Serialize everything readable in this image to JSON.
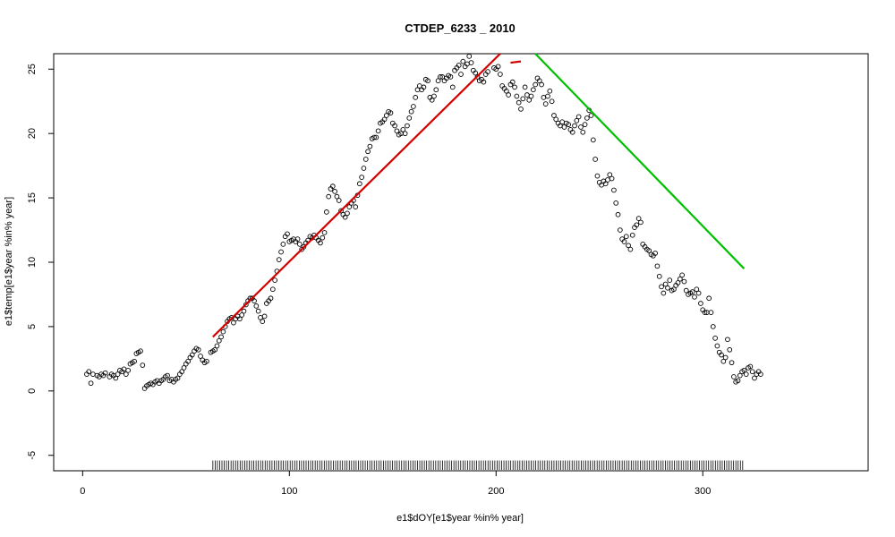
{
  "chart_data": {
    "type": "scatter",
    "title": "CTDEP_6233 _ 2010",
    "xlabel": "e1$dOY[e1$year %in% year]",
    "ylabel": "e1$temp[e1$year %in% year]",
    "xlim": [
      -14,
      380
    ],
    "ylim": [
      -6.2,
      26.2
    ],
    "x_ticks": [
      0,
      100,
      200,
      300
    ],
    "y_ticks": [
      -5,
      0,
      5,
      10,
      15,
      20,
      25
    ],
    "grid": false,
    "legend": "none",
    "points": [
      [
        2,
        1.3
      ],
      [
        3,
        1.5
      ],
      [
        4,
        0.6
      ],
      [
        5,
        1.3
      ],
      [
        7,
        1.2
      ],
      [
        8,
        1.1
      ],
      [
        9,
        1.3
      ],
      [
        10,
        1.2
      ],
      [
        11,
        1.4
      ],
      [
        13,
        1.1
      ],
      [
        14,
        1.3
      ],
      [
        15,
        1.2
      ],
      [
        16,
        1.0
      ],
      [
        17,
        1.3
      ],
      [
        18,
        1.6
      ],
      [
        19,
        1.5
      ],
      [
        20,
        1.7
      ],
      [
        21,
        1.3
      ],
      [
        22,
        1.6
      ],
      [
        23,
        2.1
      ],
      [
        24,
        2.2
      ],
      [
        25,
        2.3
      ],
      [
        26,
        2.9
      ],
      [
        27,
        3.0
      ],
      [
        28,
        3.1
      ],
      [
        29,
        2.0
      ],
      [
        30,
        0.2
      ],
      [
        31,
        0.4
      ],
      [
        32,
        0.5
      ],
      [
        33,
        0.6
      ],
      [
        34,
        0.5
      ],
      [
        35,
        0.7
      ],
      [
        36,
        0.8
      ],
      [
        37,
        0.6
      ],
      [
        38,
        0.8
      ],
      [
        39,
        0.9
      ],
      [
        40,
        1.1
      ],
      [
        41,
        1.2
      ],
      [
        42,
        0.8
      ],
      [
        43,
        0.9
      ],
      [
        44,
        0.7
      ],
      [
        45,
        0.9
      ],
      [
        46,
        1.0
      ],
      [
        47,
        1.3
      ],
      [
        48,
        1.5
      ],
      [
        49,
        1.8
      ],
      [
        50,
        2.1
      ],
      [
        51,
        2.3
      ],
      [
        52,
        2.6
      ],
      [
        53,
        2.8
      ],
      [
        54,
        3.1
      ],
      [
        55,
        3.3
      ],
      [
        56,
        3.2
      ],
      [
        57,
        2.7
      ],
      [
        58,
        2.4
      ],
      [
        59,
        2.2
      ],
      [
        60,
        2.3
      ],
      [
        62,
        3.0
      ],
      [
        63,
        3.1
      ],
      [
        64,
        3.2
      ],
      [
        65,
        3.5
      ],
      [
        66,
        3.9
      ],
      [
        67,
        4.2
      ],
      [
        68,
        4.6
      ],
      [
        69,
        5.0
      ],
      [
        70,
        5.4
      ],
      [
        71,
        5.6
      ],
      [
        72,
        5.7
      ],
      [
        73,
        5.3
      ],
      [
        74,
        5.6
      ],
      [
        75,
        5.8
      ],
      [
        76,
        5.6
      ],
      [
        77,
        5.9
      ],
      [
        78,
        6.2
      ],
      [
        79,
        6.7
      ],
      [
        80,
        7.0
      ],
      [
        81,
        7.2
      ],
      [
        82,
        7.2
      ],
      [
        83,
        7.0
      ],
      [
        84,
        6.6
      ],
      [
        85,
        6.2
      ],
      [
        86,
        5.7
      ],
      [
        87,
        5.4
      ],
      [
        88,
        5.8
      ],
      [
        89,
        6.8
      ],
      [
        90,
        7.0
      ],
      [
        91,
        7.2
      ],
      [
        92,
        7.9
      ],
      [
        93,
        8.6
      ],
      [
        94,
        9.3
      ],
      [
        95,
        10.2
      ],
      [
        96,
        10.8
      ],
      [
        97,
        11.4
      ],
      [
        98,
        12.0
      ],
      [
        99,
        12.2
      ],
      [
        100,
        11.6
      ],
      [
        101,
        11.7
      ],
      [
        102,
        11.8
      ],
      [
        103,
        11.6
      ],
      [
        104,
        11.8
      ],
      [
        105,
        11.4
      ],
      [
        106,
        11.0
      ],
      [
        107,
        11.2
      ],
      [
        108,
        11.5
      ],
      [
        109,
        11.7
      ],
      [
        110,
        12.0
      ],
      [
        111,
        11.9
      ],
      [
        112,
        12.1
      ],
      [
        113,
        11.9
      ],
      [
        114,
        11.7
      ],
      [
        115,
        11.5
      ],
      [
        116,
        11.9
      ],
      [
        117,
        12.3
      ],
      [
        118,
        13.9
      ],
      [
        119,
        15.1
      ],
      [
        120,
        15.7
      ],
      [
        121,
        15.9
      ],
      [
        122,
        15.5
      ],
      [
        123,
        15.1
      ],
      [
        124,
        14.8
      ],
      [
        125,
        14.0
      ],
      [
        126,
        13.7
      ],
      [
        127,
        13.5
      ],
      [
        128,
        13.8
      ],
      [
        129,
        14.3
      ],
      [
        130,
        14.6
      ],
      [
        131,
        14.8
      ],
      [
        132,
        14.3
      ],
      [
        133,
        15.2
      ],
      [
        134,
        16.1
      ],
      [
        135,
        16.6
      ],
      [
        136,
        17.3
      ],
      [
        137,
        18.0
      ],
      [
        138,
        18.6
      ],
      [
        139,
        19.0
      ],
      [
        140,
        19.6
      ],
      [
        141,
        19.7
      ],
      [
        142,
        19.7
      ],
      [
        143,
        20.2
      ],
      [
        144,
        20.8
      ],
      [
        145,
        20.9
      ],
      [
        146,
        21.1
      ],
      [
        147,
        21.4
      ],
      [
        148,
        21.7
      ],
      [
        149,
        21.6
      ],
      [
        150,
        20.8
      ],
      [
        151,
        20.6
      ],
      [
        152,
        20.2
      ],
      [
        153,
        19.9
      ],
      [
        154,
        20.0
      ],
      [
        155,
        20.3
      ],
      [
        156,
        20.0
      ],
      [
        157,
        20.6
      ],
      [
        158,
        21.2
      ],
      [
        159,
        21.7
      ],
      [
        160,
        22.1
      ],
      [
        161,
        22.8
      ],
      [
        162,
        23.4
      ],
      [
        163,
        23.7
      ],
      [
        164,
        23.4
      ],
      [
        165,
        23.6
      ],
      [
        166,
        24.2
      ],
      [
        167,
        24.1
      ],
      [
        168,
        22.8
      ],
      [
        169,
        22.6
      ],
      [
        170,
        22.9
      ],
      [
        171,
        23.4
      ],
      [
        172,
        24.1
      ],
      [
        173,
        24.4
      ],
      [
        174,
        24.4
      ],
      [
        175,
        24.1
      ],
      [
        176,
        24.3
      ],
      [
        177,
        24.5
      ],
      [
        178,
        24.4
      ],
      [
        179,
        23.6
      ],
      [
        180,
        24.9
      ],
      [
        181,
        25.1
      ],
      [
        182,
        25.3
      ],
      [
        183,
        24.6
      ],
      [
        184,
        25.6
      ],
      [
        185,
        25.2
      ],
      [
        186,
        25.4
      ],
      [
        187,
        26.0
      ],
      [
        188,
        25.5
      ],
      [
        189,
        24.9
      ],
      [
        190,
        24.7
      ],
      [
        191,
        24.4
      ],
      [
        192,
        24.1
      ],
      [
        193,
        24.2
      ],
      [
        194,
        24.0
      ],
      [
        195,
        24.6
      ],
      [
        196,
        24.8
      ],
      [
        199,
        25.1
      ],
      [
        200,
        25.0
      ],
      [
        201,
        25.2
      ],
      [
        202,
        24.6
      ],
      [
        203,
        23.7
      ],
      [
        204,
        23.5
      ],
      [
        205,
        23.3
      ],
      [
        206,
        23.0
      ],
      [
        207,
        23.8
      ],
      [
        208,
        24.0
      ],
      [
        209,
        23.6
      ],
      [
        210,
        22.9
      ],
      [
        211,
        22.4
      ],
      [
        212,
        21.9
      ],
      [
        213,
        22.7
      ],
      [
        214,
        23.6
      ],
      [
        215,
        23.0
      ],
      [
        216,
        22.6
      ],
      [
        217,
        22.9
      ],
      [
        218,
        23.4
      ],
      [
        219,
        23.8
      ],
      [
        220,
        24.3
      ],
      [
        221,
        24.1
      ],
      [
        222,
        23.8
      ],
      [
        223,
        22.8
      ],
      [
        224,
        22.3
      ],
      [
        225,
        22.9
      ],
      [
        226,
        23.3
      ],
      [
        227,
        22.5
      ],
      [
        228,
        21.4
      ],
      [
        229,
        21.1
      ],
      [
        230,
        20.8
      ],
      [
        231,
        20.6
      ],
      [
        232,
        20.9
      ],
      [
        233,
        20.5
      ],
      [
        234,
        20.8
      ],
      [
        235,
        20.7
      ],
      [
        236,
        20.3
      ],
      [
        237,
        20.1
      ],
      [
        238,
        20.6
      ],
      [
        239,
        21.0
      ],
      [
        240,
        21.3
      ],
      [
        241,
        20.5
      ],
      [
        242,
        20.1
      ],
      [
        243,
        20.7
      ],
      [
        244,
        21.2
      ],
      [
        245,
        21.8
      ],
      [
        246,
        21.4
      ],
      [
        247,
        19.5
      ],
      [
        248,
        18.0
      ],
      [
        249,
        16.7
      ],
      [
        250,
        16.2
      ],
      [
        251,
        16.0
      ],
      [
        252,
        16.3
      ],
      [
        253,
        16.1
      ],
      [
        254,
        16.4
      ],
      [
        255,
        16.8
      ],
      [
        256,
        16.5
      ],
      [
        257,
        15.6
      ],
      [
        258,
        14.6
      ],
      [
        259,
        13.7
      ],
      [
        260,
        12.5
      ],
      [
        261,
        11.8
      ],
      [
        262,
        11.6
      ],
      [
        263,
        12.0
      ],
      [
        264,
        11.3
      ],
      [
        265,
        11.0
      ],
      [
        266,
        12.1
      ],
      [
        267,
        12.7
      ],
      [
        268,
        12.9
      ],
      [
        269,
        13.4
      ],
      [
        270,
        13.1
      ],
      [
        271,
        11.4
      ],
      [
        272,
        11.2
      ],
      [
        273,
        11.0
      ],
      [
        274,
        10.9
      ],
      [
        275,
        10.6
      ],
      [
        276,
        10.5
      ],
      [
        277,
        10.7
      ],
      [
        278,
        9.7
      ],
      [
        279,
        8.9
      ],
      [
        280,
        8.1
      ],
      [
        281,
        7.6
      ],
      [
        282,
        8.3
      ],
      [
        283,
        8.0
      ],
      [
        284,
        8.6
      ],
      [
        285,
        7.8
      ],
      [
        286,
        7.9
      ],
      [
        287,
        8.2
      ],
      [
        288,
        8.4
      ],
      [
        289,
        8.7
      ],
      [
        290,
        9.0
      ],
      [
        291,
        8.5
      ],
      [
        292,
        7.8
      ],
      [
        293,
        7.5
      ],
      [
        294,
        7.6
      ],
      [
        295,
        7.7
      ],
      [
        296,
        7.3
      ],
      [
        297,
        7.9
      ],
      [
        298,
        7.6
      ],
      [
        299,
        6.8
      ],
      [
        300,
        6.3
      ],
      [
        301,
        6.1
      ],
      [
        302,
        6.1
      ],
      [
        303,
        7.2
      ],
      [
        304,
        6.1
      ],
      [
        305,
        5.0
      ],
      [
        306,
        4.1
      ],
      [
        307,
        3.5
      ],
      [
        308,
        3.0
      ],
      [
        309,
        2.8
      ],
      [
        310,
        2.3
      ],
      [
        311,
        2.6
      ],
      [
        312,
        4.0
      ],
      [
        313,
        3.2
      ],
      [
        314,
        2.2
      ],
      [
        315,
        1.1
      ],
      [
        316,
        0.7
      ],
      [
        317,
        0.8
      ],
      [
        318,
        1.2
      ],
      [
        319,
        1.5
      ],
      [
        320,
        1.6
      ],
      [
        321,
        1.3
      ],
      [
        322,
        1.8
      ],
      [
        323,
        1.9
      ],
      [
        324,
        1.5
      ],
      [
        325,
        1.0
      ],
      [
        326,
        1.3
      ],
      [
        327,
        1.5
      ],
      [
        328,
        1.3
      ]
    ],
    "fit_lines": [
      {
        "color": "#d40000",
        "x1": 63,
        "y1": 4.2,
        "x2": 202,
        "y2": 26.2
      },
      {
        "color": "#d40000",
        "x1": 207,
        "y1": 25.5,
        "x2": 212,
        "y2": 25.6
      },
      {
        "color": "#00c000",
        "x1": 219,
        "y1": 26.2,
        "x2": 320,
        "y2": 9.5
      }
    ],
    "rug": {
      "from": 63,
      "to": 320,
      "step": 1.1
    }
  }
}
